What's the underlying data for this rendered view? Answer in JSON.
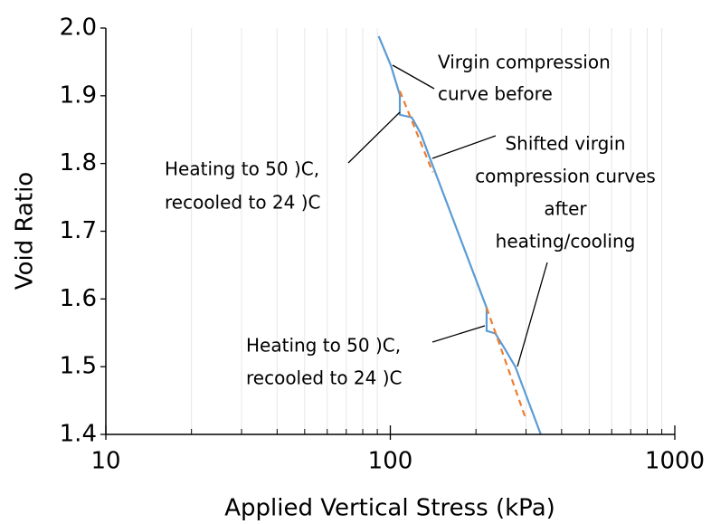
{
  "chart_data": {
    "type": "line",
    "x_label": "Applied Vertical Stress (kPa)",
    "y_label": "Void Ratio",
    "xscale": "log",
    "xlim": [
      10,
      1000
    ],
    "xticks": [
      10,
      100,
      1000
    ],
    "ylim": [
      1.4,
      2.0
    ],
    "yticks": [
      1.4,
      1.5,
      1.6,
      1.7,
      1.8,
      1.9,
      {
        "value": 2.0,
        "label": "2.0"
      }
    ],
    "minor_grid": true,
    "series": [
      {
        "color": "#5b9bd5",
        "style": "solid",
        "x": [
          91,
          100.4,
          108,
          108,
          119,
          128,
          138,
          218,
          218,
          234,
          252,
          275,
          338
        ],
        "values": [
          1.988,
          1.945,
          1.901,
          1.872,
          1.868,
          1.844,
          1.807,
          1.587,
          1.553,
          1.549,
          1.527,
          1.5,
          1.4
        ]
      },
      {
        "color": "#ed7d31",
        "style": "dashed",
        "x": [
          108,
          141,
          null,
          218,
          300
        ],
        "values": [
          1.907,
          1.787,
          null,
          1.587,
          1.422
        ]
      }
    ],
    "annotations": [
      {
        "lines": [
          "Virgin compression",
          "curve before"
        ]
      },
      {
        "lines": [
          "Shifted virgin",
          "compression curves",
          "after",
          "heating/cooling"
        ]
      },
      {
        "lines": [
          "Heating to 50 )C,",
          "recooled to 24 )C"
        ]
      },
      {
        "lines": [
          "Heating to 50 )C,",
          "recooled to 24 )C"
        ]
      }
    ]
  }
}
